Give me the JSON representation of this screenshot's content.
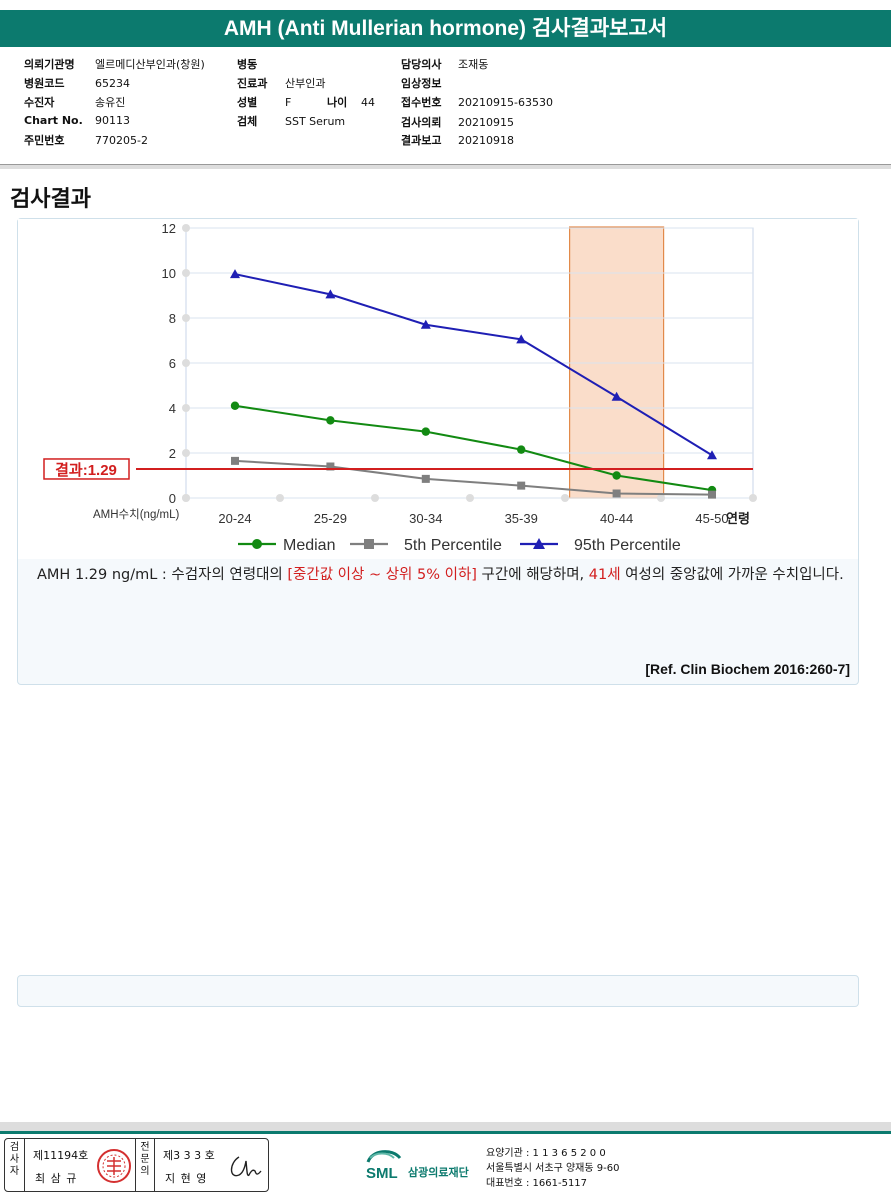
{
  "report": {
    "title": "AMH (Anti Mullerian hormone) 검사결과보고서"
  },
  "info": {
    "col1": [
      {
        "label": "의뢰기관명",
        "value": "엘르메디산부인과(창원)"
      },
      {
        "label": "병원코드",
        "value": "65234"
      },
      {
        "label": "수진자",
        "value": "송유진"
      },
      {
        "label": "Chart No.",
        "value": "90113"
      },
      {
        "label": "주민번호",
        "value": "770205-2"
      }
    ],
    "col2": [
      {
        "label": "병동",
        "value": ""
      },
      {
        "label": "진료과",
        "value": "산부인과"
      },
      {
        "label": "성별",
        "value": "F"
      },
      {
        "label": "검체",
        "value": "SST Serum"
      }
    ],
    "age": {
      "label": "나이",
      "value": "44"
    },
    "col3": [
      {
        "label": "담당의사",
        "value": "조재동"
      },
      {
        "label": "임상정보",
        "value": ""
      },
      {
        "label": "접수번호",
        "value": "20210915-63530"
      },
      {
        "label": "검사의뢰",
        "value": "20210915"
      },
      {
        "label": "결과보고",
        "value": "20210918"
      }
    ]
  },
  "section_title": "검사결과",
  "chart_data": {
    "type": "line",
    "categories": [
      "20-24",
      "25-29",
      "30-34",
      "35-39",
      "40-44",
      "45-50"
    ],
    "x_axis_suffix": "연령",
    "y_axis_label": "AMH수치(ng/mL)",
    "ylim": [
      0,
      12
    ],
    "y_ticks": [
      0,
      2,
      4,
      6,
      8,
      10,
      12
    ],
    "grid": true,
    "series": [
      {
        "name": "Median",
        "color": "#128a12",
        "marker": "circle",
        "values": [
          4.1,
          3.45,
          2.95,
          2.15,
          1.0,
          0.35
        ]
      },
      {
        "name": "5th Percentile",
        "color": "#7f7f7f",
        "marker": "square",
        "values": [
          1.65,
          1.4,
          0.85,
          0.55,
          0.2,
          0.15
        ]
      },
      {
        "name": "95th Percentile",
        "color": "#1f1fb4",
        "marker": "triangle",
        "values": [
          9.95,
          9.05,
          7.7,
          7.05,
          4.5,
          1.9
        ]
      }
    ],
    "highlight_category": "40-44",
    "highlight_color": "#f3b48a",
    "result_line": {
      "label": "결과:1.29",
      "value": 1.29,
      "color": "#d21f1f"
    },
    "legend_position": "bottom"
  },
  "result": {
    "part1": "AMH  1.29 ng/mL : 수검자의 연령대의 ",
    "range": "[중간값 이상 ~ 상위 5% 이하]",
    "part2": "  구간에 해당하며, ",
    "age": "41세",
    "part3": " 여성의 중앙값에 가까운 수치입니다.",
    "reference": "[Ref. Clin Biochem 2016:260-7]"
  },
  "footer": {
    "inspector_label": "검사자",
    "inspector_no": "제11194호",
    "inspector_name": "최 삼 규",
    "doctor_label": "전문의",
    "doctor_no": "제3 3 3 호",
    "doctor_name": "지 현 영",
    "org_name": "삼광의료재단",
    "org_logo": "SML",
    "org_code": "요양기관 : 1 1 3 6 5 2 0 0",
    "org_address": "서울특별시 서초구 양재동 9-60",
    "org_phone": "대표번호 : 1661-5117"
  }
}
